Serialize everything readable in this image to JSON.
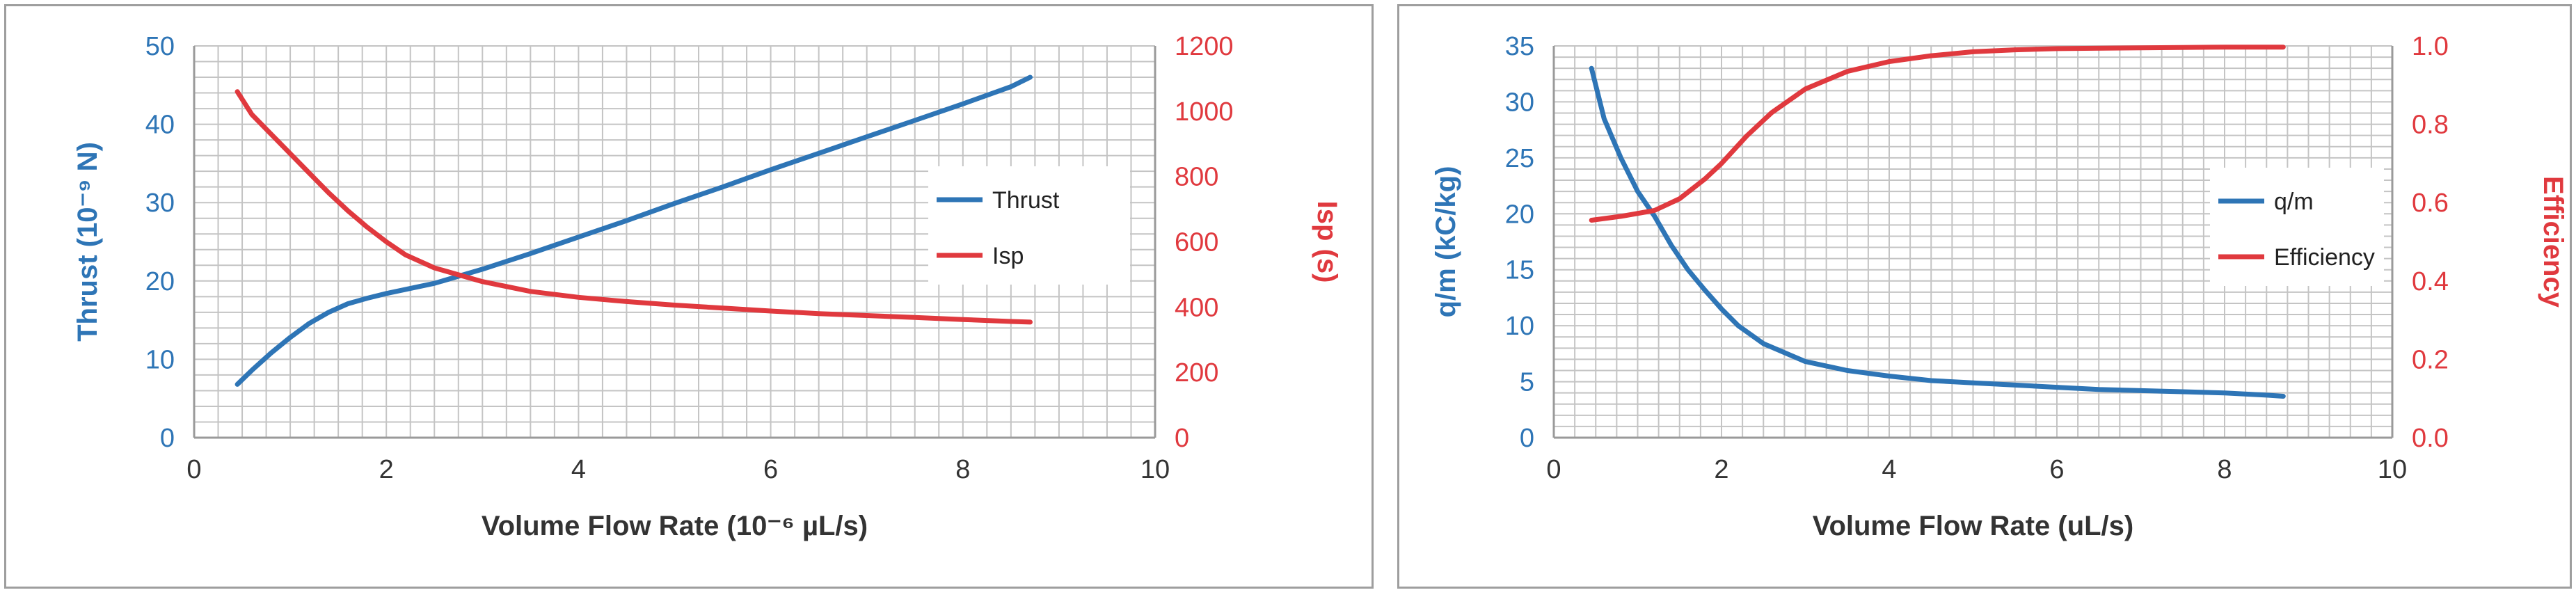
{
  "colors": {
    "blue": "#2e75b6",
    "red": "#e0393e",
    "grid": "#c4c4c4",
    "axis": "#9a9a9a",
    "tickText": "#333333"
  },
  "chart_data": [
    {
      "type": "line",
      "title": "",
      "xlabel": "Volume Flow Rate (10⁻⁶ µL/s)",
      "ylabel": "Thrust (10⁻⁹ N)",
      "y2label": "Isp (s)",
      "xlim": [
        0,
        10
      ],
      "ylim": [
        0,
        50
      ],
      "y2lim": [
        0,
        1200
      ],
      "xticks": [
        0,
        2,
        4,
        6,
        8,
        10
      ],
      "yticks": [
        0,
        10,
        20,
        30,
        40,
        50
      ],
      "y2ticks": [
        0,
        200,
        400,
        600,
        800,
        1000,
        1200
      ],
      "grid": true,
      "legend_position": "right",
      "series": [
        {
          "name": "Thrust",
          "axis": "left",
          "color": "#2e75b6",
          "x": [
            0.45,
            0.6,
            0.8,
            1.0,
            1.2,
            1.4,
            1.6,
            1.8,
            2.0,
            2.5,
            3.0,
            3.5,
            4.0,
            4.5,
            5.0,
            5.5,
            6.0,
            6.5,
            7.0,
            7.5,
            8.0,
            8.5,
            8.7
          ],
          "y": [
            6.8,
            8.6,
            10.8,
            12.8,
            14.6,
            16.0,
            17.1,
            17.8,
            18.4,
            19.7,
            21.5,
            23.5,
            25.6,
            27.7,
            29.9,
            32.0,
            34.2,
            36.3,
            38.4,
            40.5,
            42.6,
            44.8,
            46.0
          ]
        },
        {
          "name": "Isp",
          "axis": "right",
          "color": "#e0393e",
          "x": [
            0.45,
            0.6,
            0.8,
            1.0,
            1.2,
            1.4,
            1.6,
            1.8,
            2.0,
            2.2,
            2.5,
            3.0,
            3.5,
            4.0,
            4.5,
            5.0,
            5.5,
            6.0,
            6.5,
            7.0,
            7.5,
            8.0,
            8.5,
            8.7
          ],
          "y": [
            1060,
            990,
            930,
            870,
            810,
            750,
            695,
            645,
            600,
            560,
            520,
            478,
            448,
            430,
            417,
            406,
            397,
            388,
            380,
            374,
            368,
            362,
            356,
            354
          ]
        }
      ]
    },
    {
      "type": "line",
      "title": "",
      "xlabel": "Volume Flow Rate (uL/s)",
      "ylabel": "q/m (kC/kg)",
      "y2label": "Efficiency",
      "xlim": [
        0,
        10
      ],
      "ylim": [
        0,
        35
      ],
      "y2lim": [
        0,
        1
      ],
      "xticks": [
        0,
        2,
        4,
        6,
        8,
        10
      ],
      "yticks": [
        0,
        5,
        10,
        15,
        20,
        25,
        30,
        35
      ],
      "y2ticks": [
        0,
        0.2,
        0.4,
        0.6,
        0.8,
        1.0
      ],
      "y2tick_labels": [
        "0.0",
        "0.2",
        "0.4",
        "0.6",
        "0.8",
        "1.0"
      ],
      "grid": true,
      "legend_position": "right",
      "series": [
        {
          "name": "q/m",
          "axis": "left",
          "color": "#2e75b6",
          "x": [
            0.45,
            0.6,
            0.8,
            1.0,
            1.2,
            1.4,
            1.6,
            1.8,
            2.0,
            2.2,
            2.5,
            3.0,
            3.5,
            4.0,
            4.5,
            5.0,
            5.5,
            6.0,
            6.5,
            7.0,
            7.5,
            8.0,
            8.5,
            8.7
          ],
          "y": [
            33.0,
            28.5,
            25.0,
            22.0,
            19.8,
            17.2,
            15.0,
            13.2,
            11.5,
            10.0,
            8.4,
            6.8,
            6.0,
            5.5,
            5.1,
            4.9,
            4.7,
            4.5,
            4.3,
            4.2,
            4.1,
            4.0,
            3.8,
            3.7
          ]
        },
        {
          "name": "Efficiency",
          "axis": "right",
          "color": "#e0393e",
          "x": [
            0.45,
            0.8,
            1.2,
            1.5,
            1.8,
            2.0,
            2.3,
            2.6,
            3.0,
            3.5,
            4.0,
            4.5,
            5.0,
            5.5,
            6.0,
            7.0,
            8.0,
            8.7
          ],
          "y": [
            0.555,
            0.565,
            0.58,
            0.61,
            0.66,
            0.7,
            0.77,
            0.83,
            0.89,
            0.935,
            0.96,
            0.975,
            0.985,
            0.99,
            0.993,
            0.995,
            0.997,
            0.997
          ]
        }
      ]
    }
  ]
}
